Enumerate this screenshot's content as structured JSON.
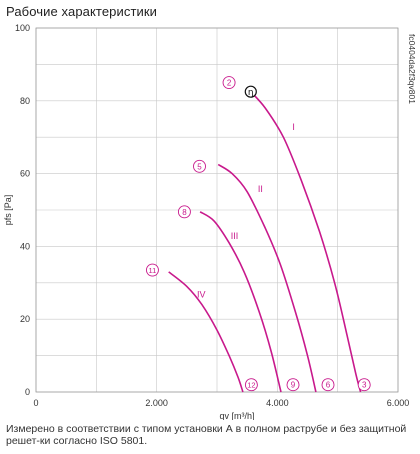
{
  "page": {
    "title": "Рабочие характеристики",
    "footnote": "Измерено в соответствии с типом установки А в полном раструбе и без защитной решет-ки согласно ISO 5801."
  },
  "chart_data": {
    "type": "line",
    "title": "Рабочие характеристики",
    "xlabel": "qv [m³/h]",
    "ylabel": "pfs [Pa]",
    "xlim": [
      0,
      6000
    ],
    "ylim": [
      0,
      100
    ],
    "x_ticks": [
      0,
      2000,
      4000,
      6000
    ],
    "x_tick_labels": [
      "0",
      "2.000",
      "4.000",
      "6.000"
    ],
    "y_ticks": [
      0,
      20,
      40,
      60,
      80,
      100
    ],
    "y_tick_labels": [
      "0",
      "20",
      "40",
      "60",
      "80",
      "100"
    ],
    "grid": true,
    "series_color": "#c8198c",
    "series": [
      {
        "name": "I",
        "points": [
          [
            3560,
            82.5
          ],
          [
            3800,
            78
          ],
          [
            4100,
            70
          ],
          [
            4400,
            58
          ],
          [
            4700,
            44
          ],
          [
            4950,
            30
          ],
          [
            5150,
            16
          ],
          [
            5300,
            5
          ],
          [
            5380,
            0
          ]
        ]
      },
      {
        "name": "II",
        "points": [
          [
            3020,
            62.5
          ],
          [
            3250,
            60
          ],
          [
            3500,
            55
          ],
          [
            3800,
            45
          ],
          [
            4050,
            35
          ],
          [
            4300,
            22
          ],
          [
            4500,
            10
          ],
          [
            4640,
            0
          ]
        ]
      },
      {
        "name": "III",
        "points": [
          [
            2720,
            49.5
          ],
          [
            2950,
            47
          ],
          [
            3200,
            41
          ],
          [
            3450,
            33
          ],
          [
            3700,
            22
          ],
          [
            3900,
            11
          ],
          [
            4060,
            0
          ]
        ]
      },
      {
        "name": "IV",
        "points": [
          [
            2200,
            33
          ],
          [
            2500,
            29
          ],
          [
            2750,
            24
          ],
          [
            3000,
            17
          ],
          [
            3200,
            10
          ],
          [
            3350,
            4
          ],
          [
            3430,
            0
          ]
        ]
      }
    ],
    "curve_labels": [
      {
        "text": "I",
        "x": 4270,
        "y": 72
      },
      {
        "text": "II",
        "x": 3720,
        "y": 55
      },
      {
        "text": "III",
        "x": 3290,
        "y": 42
      },
      {
        "text": "IV",
        "x": 2740,
        "y": 26
      }
    ],
    "point_markers": [
      {
        "text": "2",
        "x": 3200,
        "y": 85
      },
      {
        "text": "5",
        "x": 2710,
        "y": 62
      },
      {
        "text": "8",
        "x": 2460,
        "y": 49.5
      },
      {
        "text": "11",
        "x": 1930,
        "y": 33.5
      },
      {
        "text": "3",
        "x": 5440,
        "y": 2
      },
      {
        "text": "6",
        "x": 4840,
        "y": 2
      },
      {
        "text": "9",
        "x": 4260,
        "y": 2
      },
      {
        "text": "12",
        "x": 3570,
        "y": 2
      }
    ],
    "optimum_marker": {
      "text": "η",
      "x": 3560,
      "y": 82.5
    },
    "code_label": "fc0404da2f3qv801"
  }
}
